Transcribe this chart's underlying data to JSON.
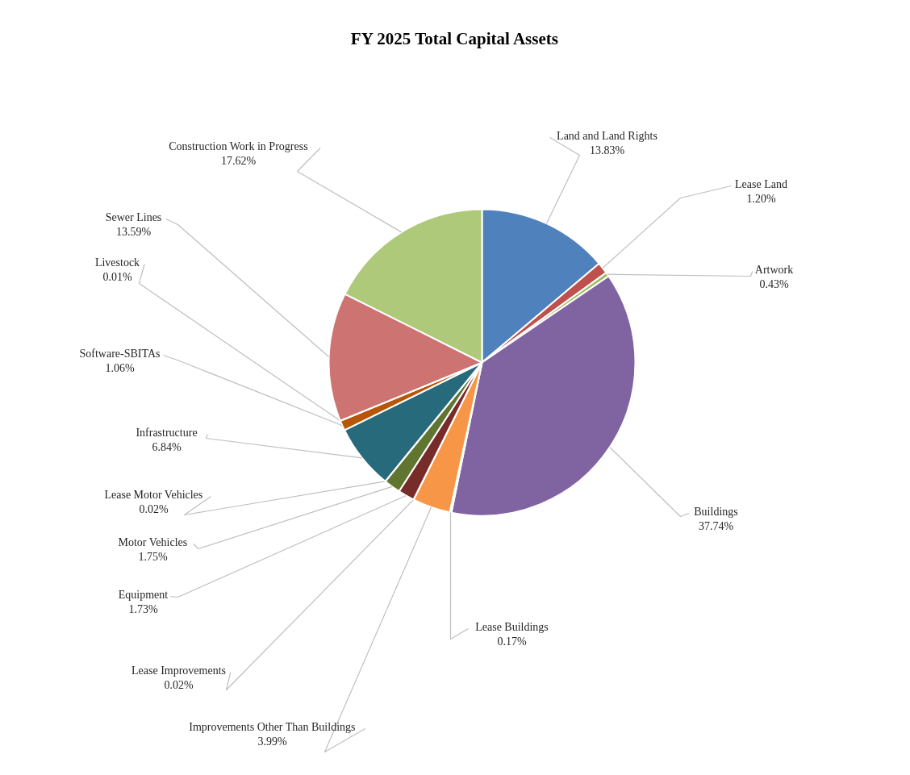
{
  "chart_data": {
    "type": "pie",
    "title": "FY 2025 Total Capital Assets",
    "categories": [
      "Land and Land Rights",
      "Lease Land",
      "Artwork",
      "Buildings",
      "Lease Buildings",
      "Improvements Other Than Buildings",
      "Lease Improvements",
      "Equipment",
      "Motor Vehicles",
      "Lease Motor Vehicles",
      "Infrastructure",
      "Software-SBITAs",
      "Livestock",
      "Sewer Lines",
      "Construction Work in Progress"
    ],
    "values": [
      13.83,
      1.2,
      0.43,
      37.74,
      0.17,
      3.99,
      0.02,
      1.73,
      1.75,
      0.02,
      6.84,
      1.06,
      0.01,
      13.59,
      17.62
    ],
    "value_labels": [
      "13.83%",
      "1.20%",
      "0.43%",
      "37.74%",
      "0.17%",
      "3.99%",
      "0.02%",
      "1.73%",
      "1.75%",
      "0.02%",
      "6.84%",
      "1.06%",
      "0.01%",
      "13.59%",
      "17.62%"
    ],
    "colors": [
      "#4f81bd",
      "#c0504d",
      "#9bbb59",
      "#8064a2",
      "#4bacc6",
      "#f79646",
      "#2c4d75",
      "#772c2a",
      "#5f7530",
      "#4d3b62",
      "#276a7c",
      "#b65708",
      "#729aca",
      "#cd7371",
      "#afc97a"
    ],
    "legend": false
  }
}
